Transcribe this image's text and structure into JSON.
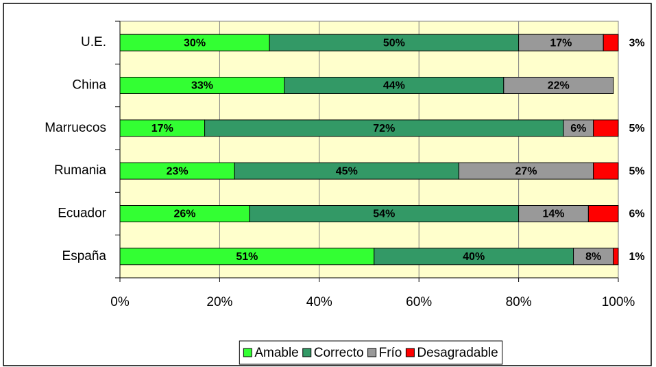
{
  "chart_data": {
    "type": "stacked_bar_horizontal",
    "categories": [
      "U.E.",
      "China",
      "Marruecos",
      "Rumania",
      "Ecuador",
      "España"
    ],
    "series": [
      {
        "name": "Amable",
        "color": "#33ff33",
        "values": [
          30,
          33,
          17,
          23,
          26,
          51
        ],
        "value_labels": [
          "30%",
          "33%",
          "17%",
          "23%",
          "26%",
          "51%"
        ]
      },
      {
        "name": "Correcto",
        "color": "#339966",
        "values": [
          50,
          44,
          72,
          45,
          54,
          40
        ],
        "value_labels": [
          "50%",
          "44%",
          "72%",
          "45%",
          "54%",
          "40%"
        ]
      },
      {
        "name": "Frío",
        "color": "#999999",
        "values": [
          17,
          22,
          6,
          27,
          14,
          8
        ],
        "value_labels": [
          "17%",
          "22%",
          "6%",
          "27%",
          "14%",
          "8%"
        ]
      },
      {
        "name": "Desagradable",
        "color": "#ff0000",
        "values": [
          3,
          null,
          5,
          5,
          6,
          1
        ],
        "value_labels": [
          "3%",
          null,
          "5%",
          "5%",
          "6%",
          "1%"
        ]
      }
    ],
    "xlim": [
      0,
      100
    ],
    "xticks": [
      {
        "value": 0,
        "label": "0%"
      },
      {
        "value": 20,
        "label": "20%"
      },
      {
        "value": 40,
        "label": "40%"
      },
      {
        "value": 60,
        "label": "60%"
      },
      {
        "value": 80,
        "label": "80%"
      },
      {
        "value": 100,
        "label": "100%"
      }
    ],
    "grid": true,
    "legend": "bottom",
    "background": "#ffffcc"
  }
}
